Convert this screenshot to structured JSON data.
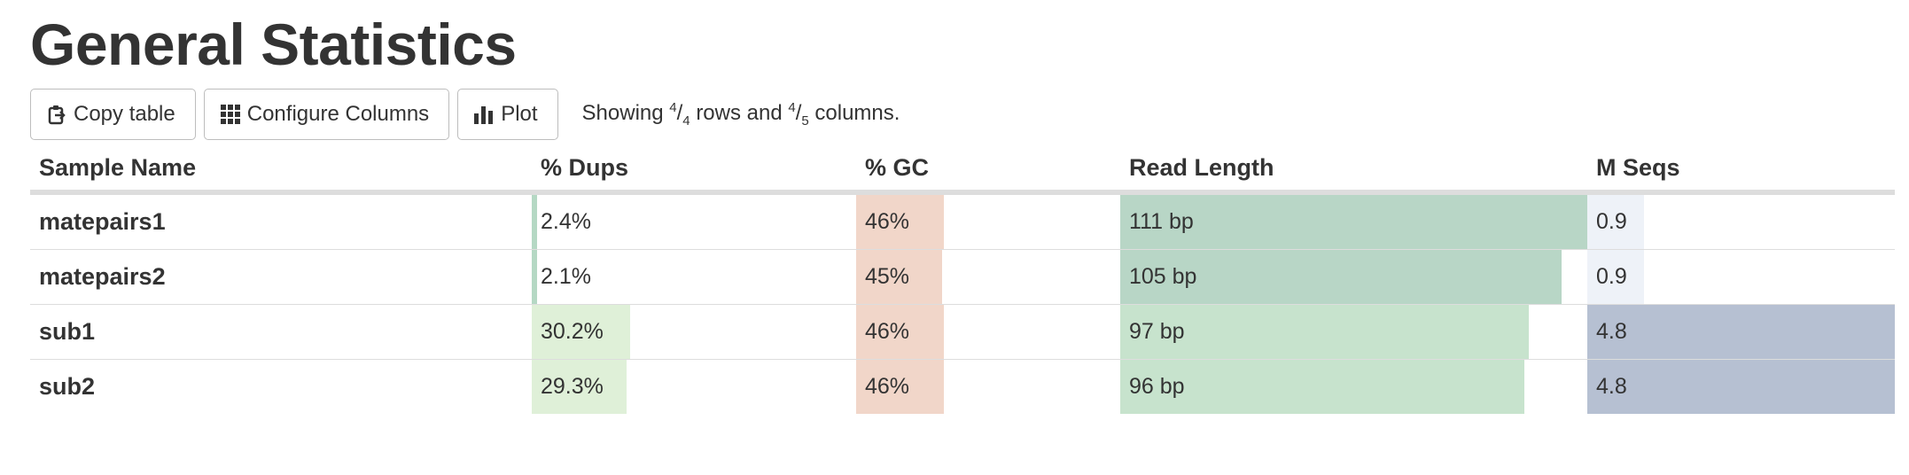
{
  "title": "General Statistics",
  "toolbar": {
    "copy_label": "Copy table",
    "configure_label": "Configure Columns",
    "plot_label": "Plot",
    "showing_prefix": "Showing",
    "rows_shown": "4",
    "rows_total": "4",
    "rows_word": "rows and",
    "cols_shown": "4",
    "cols_total": "5",
    "cols_word": "columns."
  },
  "table": {
    "headers": {
      "sample": "Sample Name",
      "dups": "% Dups",
      "gc": "% GC",
      "readlen": "Read Length",
      "mseqs": "M Seqs"
    },
    "colors": {
      "dups": "#dff0d8",
      "dups_small": "#b5d8c4",
      "gc": "#f1d6c9",
      "readlen": "#c7e3cd",
      "readlen_dark": "#b8d6c6",
      "mseqs": "#b6c0d2",
      "mseqs_small": "#eef2f8"
    },
    "rows": [
      {
        "name": "matepairs1",
        "dups": "2.4%",
        "dups_pct": 2.4,
        "gc": "46%",
        "gc_pct": 46,
        "readlen": "111 bp",
        "readlen_val": 111,
        "mseqs": "0.9",
        "mseqs_val": 0.9
      },
      {
        "name": "matepairs2",
        "dups": "2.1%",
        "dups_pct": 2.1,
        "gc": "45%",
        "gc_pct": 45,
        "readlen": "105 bp",
        "readlen_val": 105,
        "mseqs": "0.9",
        "mseqs_val": 0.9
      },
      {
        "name": "sub1",
        "dups": "30.2%",
        "dups_pct": 30.2,
        "gc": "46%",
        "gc_pct": 46,
        "readlen": "97 bp",
        "readlen_val": 97,
        "mseqs": "4.8",
        "mseqs_val": 4.8
      },
      {
        "name": "sub2",
        "dups": "29.3%",
        "dups_pct": 29.3,
        "gc": "46%",
        "gc_pct": 46,
        "readlen": "96 bp",
        "readlen_val": 96,
        "mseqs": "4.8",
        "mseqs_val": 4.8
      }
    ]
  }
}
